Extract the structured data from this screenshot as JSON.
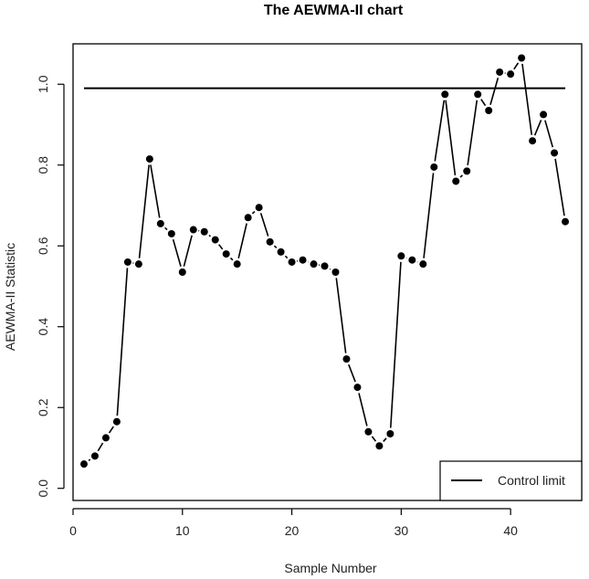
{
  "chart_data": {
    "type": "line",
    "title": "The AEWMA-II chart",
    "xlabel": "Sample Number",
    "ylabel": "AEWMA-II Statistic",
    "xlim": [
      0,
      46.5
    ],
    "ylim": [
      -0.03,
      1.1
    ],
    "xticks": [
      0,
      10,
      20,
      30,
      40
    ],
    "yticks": [
      0.0,
      0.2,
      0.4,
      0.6,
      0.8,
      1.0
    ],
    "ytick_labels": [
      "0.0",
      "0.2",
      "0.4",
      "0.6",
      "0.8",
      "1.0"
    ],
    "grid": false,
    "legend_position": "bottom-right",
    "series": [
      {
        "name": "",
        "style": "line-with-points",
        "color": "#000000",
        "x": [
          1,
          2,
          3,
          4,
          5,
          6,
          7,
          8,
          9,
          10,
          11,
          12,
          13,
          14,
          15,
          16,
          17,
          18,
          19,
          20,
          21,
          22,
          23,
          24,
          25,
          26,
          27,
          28,
          29,
          30,
          31,
          32,
          33,
          34,
          35,
          36,
          37,
          38,
          39,
          40,
          41,
          42,
          43,
          44,
          45
        ],
        "values": [
          0.06,
          0.08,
          0.125,
          0.165,
          0.56,
          0.555,
          0.815,
          0.655,
          0.63,
          0.535,
          0.64,
          0.635,
          0.615,
          0.58,
          0.555,
          0.67,
          0.695,
          0.61,
          0.585,
          0.56,
          0.565,
          0.555,
          0.55,
          0.535,
          0.32,
          0.25,
          0.14,
          0.105,
          0.135,
          0.575,
          0.565,
          0.555,
          0.795,
          0.975,
          0.76,
          0.785,
          0.975,
          0.935,
          1.03,
          1.025,
          1.065,
          0.86,
          0.925,
          0.83,
          0.66
        ]
      },
      {
        "name": "Control limit",
        "style": "line",
        "color": "#000000",
        "x": [
          1,
          45
        ],
        "values": [
          0.99,
          0.99
        ]
      }
    ],
    "legend": [
      {
        "label": "Control limit"
      }
    ]
  }
}
